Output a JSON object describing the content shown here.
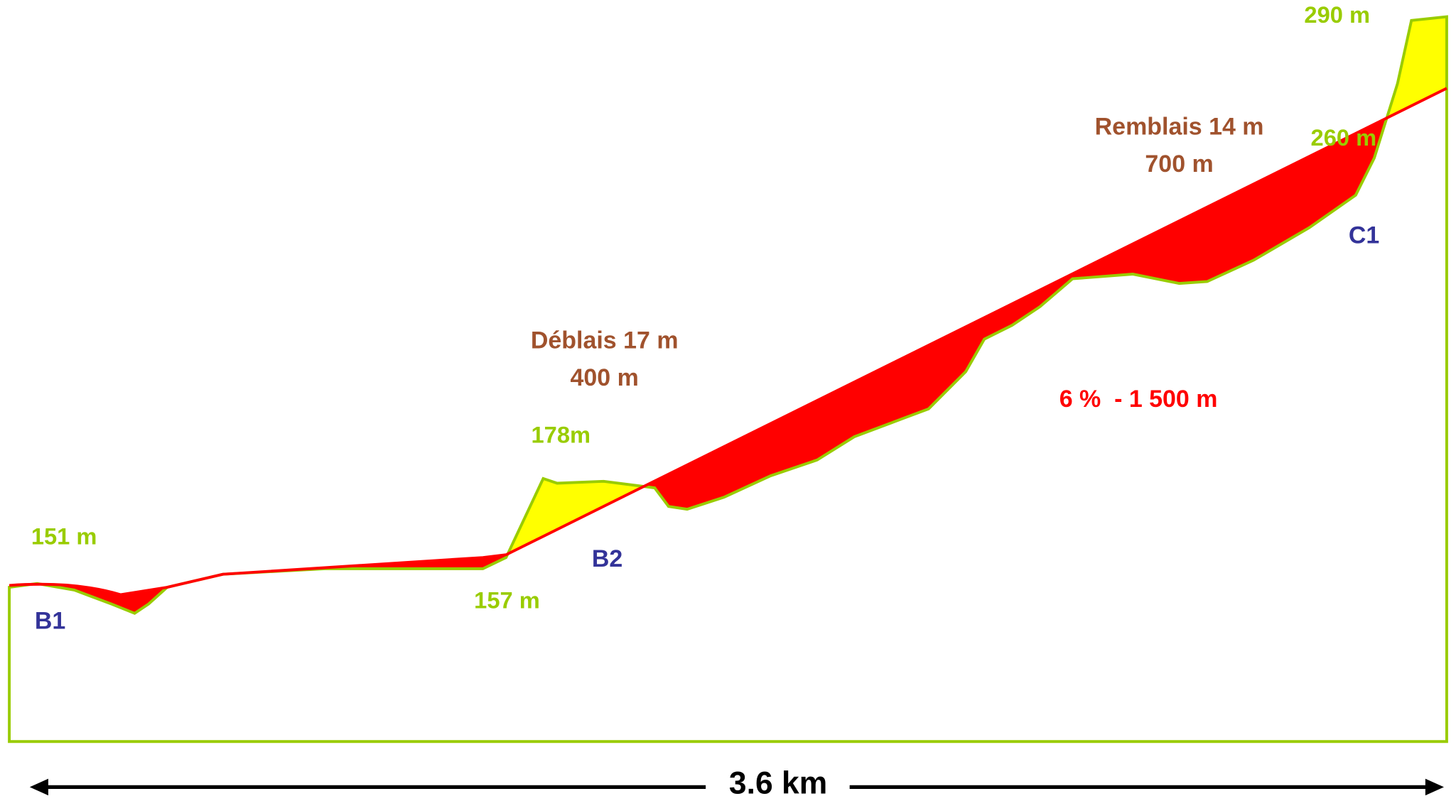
{
  "labels": {
    "top_elevation": "290 m",
    "upper_elevation": "260 m",
    "fill_label": "Remblais 14 m",
    "fill_length": "700 m",
    "point_c1": "C1",
    "cut_label": "Déblais 17 m",
    "cut_length": "400 m",
    "cut_elevation": "178m",
    "slope_label": "6 %  - 1 500 m",
    "start_elevation": "151 m",
    "point_b2": "B2",
    "b2_elevation": "157 m",
    "point_b1": "B1",
    "distance": "3.6 km"
  }
}
